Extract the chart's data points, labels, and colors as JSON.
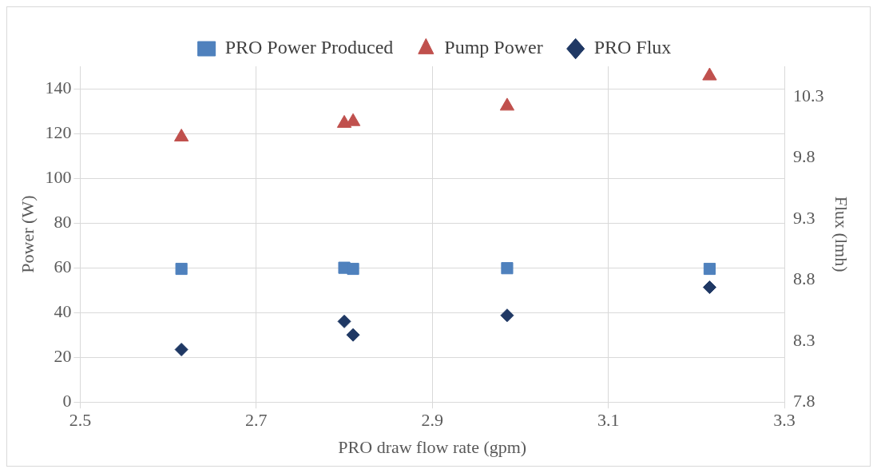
{
  "chart_data": {
    "type": "scatter",
    "xlabel": "PRO draw flow rate (gpm)",
    "ylabel": "Power (W)",
    "y2label": "Flux (lmh)",
    "x": [
      2.615,
      2.8,
      2.81,
      2.985,
      3.215
    ],
    "series": [
      {
        "name": "PRO Power Produced",
        "color": "#4f81bd",
        "marker": "square",
        "values": [
          59.5,
          60,
          59.5,
          59.8,
          59.5
        ]
      },
      {
        "name": "Pump Power",
        "color": "#c0504d",
        "marker": "triangle",
        "values": [
          118.4,
          124.5,
          125.3,
          132.2,
          145.7
        ]
      },
      {
        "name": "PRO Flux",
        "color": "#1f3864",
        "marker": "diamond",
        "axis": "y2",
        "values": [
          8.23,
          8.46,
          8.35,
          8.51,
          8.74
        ]
      }
    ],
    "xlim": [
      2.5,
      3.3
    ],
    "xticks": [
      2.5,
      2.7,
      2.9,
      3.1,
      3.3
    ],
    "ylim": [
      0,
      150
    ],
    "yticks": [
      0,
      20,
      40,
      60,
      80,
      100,
      120,
      140
    ],
    "y2lim": [
      7.8,
      10.55
    ],
    "y2ticks": [
      7.8,
      8.3,
      8.8,
      9.3,
      9.8,
      10.3
    ],
    "grid": true,
    "legend": "top"
  }
}
